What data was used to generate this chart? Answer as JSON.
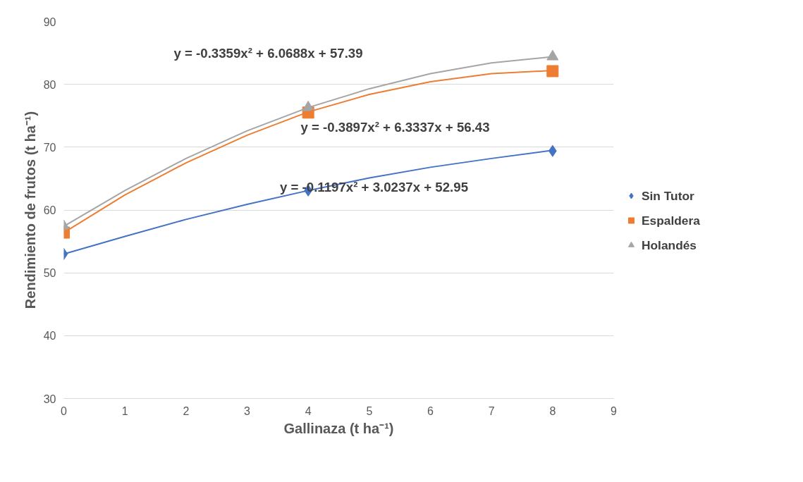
{
  "chart_data": {
    "type": "scatter",
    "xlabel": "Gallinaza (t ha⁻¹)",
    "ylabel": "Rendimiento de frutos (t ha⁻¹)",
    "xlim": [
      0,
      9
    ],
    "xticks": [
      0,
      1,
      2,
      3,
      4,
      5,
      6,
      7,
      8,
      9
    ],
    "ylim": [
      30,
      90
    ],
    "yticks": [
      30,
      40,
      50,
      60,
      70,
      80,
      90
    ],
    "grid": "y",
    "legend": "right",
    "series": [
      {
        "name": "Sin Tutor",
        "color": "#4472c4",
        "marker": "diamond",
        "x": [
          0,
          4,
          8
        ],
        "values": [
          53.0,
          63.1,
          69.4
        ]
      },
      {
        "name": "Espaldera",
        "color": "#ed7d31",
        "marker": "square",
        "x": [
          0,
          4,
          8
        ],
        "values": [
          56.4,
          75.5,
          82.1
        ]
      },
      {
        "name": "Holandés",
        "color": "#a5a5a5",
        "marker": "triangle",
        "x": [
          0,
          4,
          8
        ],
        "values": [
          57.4,
          76.3,
          84.4
        ]
      },
      {
        "type": "line",
        "color": "#4472c4",
        "x": [
          0,
          1,
          2,
          3,
          4,
          5,
          6,
          7,
          8
        ],
        "values": [
          53.0,
          55.8,
          58.5,
          60.9,
          63.1,
          65.1,
          66.8,
          68.2,
          69.5
        ]
      },
      {
        "type": "line",
        "color": "#ed7d31",
        "x": [
          0,
          1,
          2,
          3,
          4,
          5,
          6,
          7,
          8
        ],
        "values": [
          56.4,
          62.4,
          67.5,
          71.9,
          75.6,
          78.4,
          80.4,
          81.7,
          82.2
        ]
      },
      {
        "type": "line",
        "color": "#a5a5a5",
        "x": [
          0,
          1,
          2,
          3,
          4,
          5,
          6,
          7,
          8
        ],
        "values": [
          57.4,
          63.1,
          68.2,
          72.6,
          76.3,
          79.3,
          81.7,
          83.4,
          84.4
        ]
      }
    ],
    "annotations": [
      "y = -0.3359x² + 6.0688x + 57.39",
      "y = -0.3897x² + 6.3337x + 56.43",
      "y = -0.1197x² + 3.0237x + 52.95"
    ]
  }
}
